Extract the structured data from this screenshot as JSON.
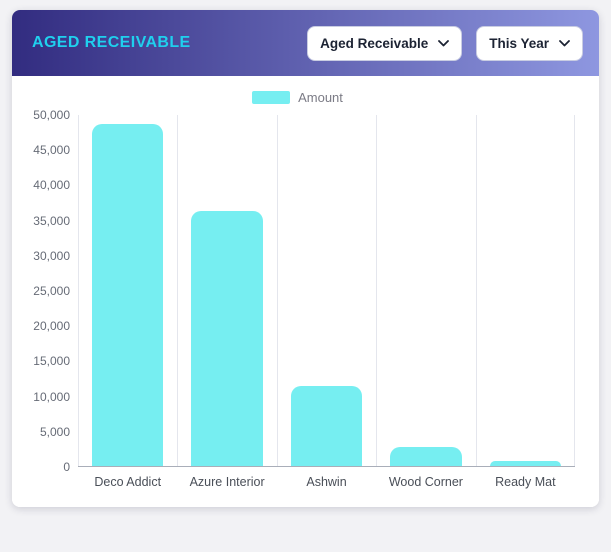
{
  "header": {
    "title": "AGED RECEIVABLE",
    "filter_dropdown": {
      "label": "Aged Receivable"
    },
    "period_dropdown": {
      "label": "This Year"
    }
  },
  "legend": {
    "label": "Amount"
  },
  "colors": {
    "bar": "#76eef1",
    "header_gradient_start": "#322c80",
    "header_gradient_end": "#8e97e0",
    "title": "#1fd0ee"
  },
  "chart_data": {
    "type": "bar",
    "title": "Aged Receivable",
    "categories": [
      "Deco Addict",
      "Azure Interior",
      "Ashwin",
      "Wood Corner",
      "Ready Mat"
    ],
    "series": [
      {
        "name": "Amount",
        "values": [
          48700,
          36300,
          11350,
          2750,
          700
        ]
      }
    ],
    "xlabel": "",
    "ylabel": "",
    "ylim": [
      0,
      50000
    ],
    "y_tick_step": 5000,
    "y_ticks": [
      "0",
      "5,000",
      "10,000",
      "15,000",
      "20,000",
      "25,000",
      "30,000",
      "35,000",
      "40,000",
      "45,000",
      "50,000"
    ],
    "grid": "vertical",
    "legend_position": "top"
  }
}
